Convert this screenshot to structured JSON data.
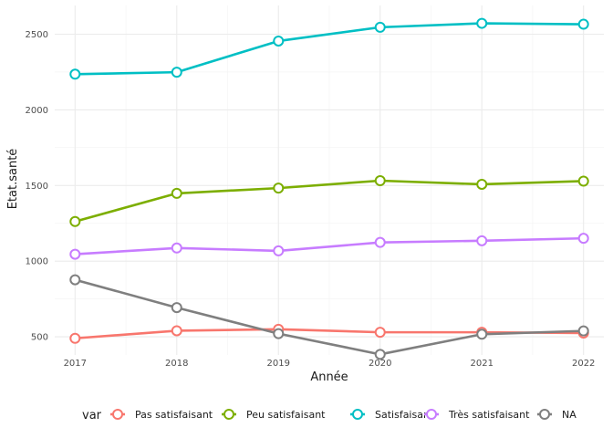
{
  "chart_data": {
    "type": "line",
    "xlabel": "Année",
    "ylabel": "Etat.santé",
    "x": [
      2017,
      2018,
      2019,
      2020,
      2021,
      2022
    ],
    "xlim": [
      2016.8,
      2022.2
    ],
    "ylim": [
      380,
      2690
    ],
    "yticks": [
      500,
      1000,
      1500,
      2000,
      2500
    ],
    "grid": true,
    "legend": {
      "title": "var",
      "placement": "bottom"
    },
    "series": [
      {
        "name": "Pas satisfaisant",
        "color": "#F8766D",
        "values": [
          490,
          540,
          550,
          530,
          530,
          525
        ]
      },
      {
        "name": "Peu satisfaisant",
        "color": "#7CAE00",
        "values": [
          1262,
          1448,
          1483,
          1532,
          1508,
          1529
        ]
      },
      {
        "name": "Satisfaisant",
        "color": "#00BFC4",
        "values": [
          2236,
          2249,
          2455,
          2546,
          2572,
          2566
        ]
      },
      {
        "name": "Très satisfaisant",
        "color": "#C77CFF",
        "values": [
          1046,
          1087,
          1068,
          1124,
          1135,
          1151
        ]
      },
      {
        "name": "NA",
        "color": "#7F7F7F",
        "values": [
          877,
          693,
          521,
          384,
          517,
          539
        ]
      }
    ]
  }
}
